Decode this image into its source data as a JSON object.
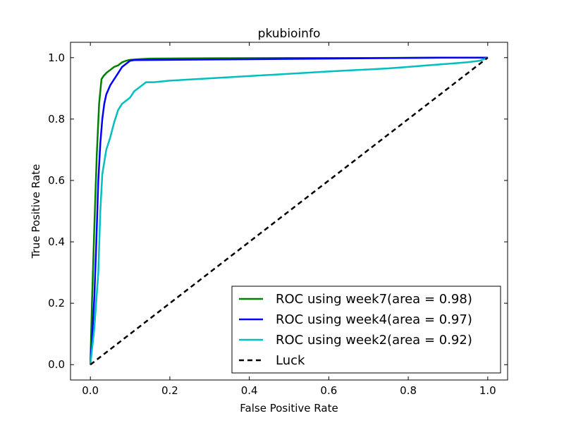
{
  "chart_data": {
    "type": "line",
    "title": "pkubioinfo",
    "xlabel": "False Positive Rate",
    "ylabel": "True Positive Rate",
    "xlim": [
      -0.05,
      1.05
    ],
    "ylim": [
      -0.05,
      1.05
    ],
    "xticks": [
      0.0,
      0.2,
      0.4,
      0.6,
      0.8,
      1.0
    ],
    "yticks": [
      0.0,
      0.2,
      0.4,
      0.6,
      0.8,
      1.0
    ],
    "xtick_labels": [
      "0.0",
      "0.2",
      "0.4",
      "0.6",
      "0.8",
      "1.0"
    ],
    "ytick_labels": [
      "0.0",
      "0.2",
      "0.4",
      "0.6",
      "0.8",
      "1.0"
    ],
    "grid": false,
    "legend_position": "bottom-right",
    "series": [
      {
        "name": "ROC using week7(area = 0.98)",
        "color": "#008000",
        "style": "solid",
        "x": [
          0.0,
          0.004,
          0.01,
          0.016,
          0.022,
          0.028,
          0.033,
          0.04,
          0.05,
          0.06,
          0.07,
          0.08,
          0.09,
          0.1,
          0.12,
          0.15,
          0.3,
          0.5,
          0.7,
          0.9,
          1.0
        ],
        "y": [
          0.0,
          0.2,
          0.45,
          0.68,
          0.85,
          0.93,
          0.94,
          0.95,
          0.96,
          0.97,
          0.975,
          0.985,
          0.99,
          0.993,
          0.995,
          0.997,
          0.998,
          0.999,
          0.999,
          1.0,
          1.0
        ]
      },
      {
        "name": "ROC using week4(area = 0.97)",
        "color": "#0000ff",
        "style": "solid",
        "x": [
          0.0,
          0.005,
          0.01,
          0.015,
          0.02,
          0.025,
          0.03,
          0.035,
          0.04,
          0.05,
          0.06,
          0.07,
          0.08,
          0.09,
          0.1,
          0.11,
          0.2,
          0.4,
          0.6,
          0.88,
          1.0
        ],
        "y": [
          0.0,
          0.1,
          0.22,
          0.4,
          0.6,
          0.72,
          0.8,
          0.85,
          0.88,
          0.91,
          0.93,
          0.95,
          0.97,
          0.98,
          0.99,
          0.992,
          0.993,
          0.995,
          0.997,
          1.0,
          1.0
        ]
      },
      {
        "name": "ROC using week2(area = 0.92)",
        "color": "#00bfbf",
        "style": "solid",
        "x": [
          0.0,
          0.01,
          0.02,
          0.025,
          0.03,
          0.04,
          0.05,
          0.06,
          0.07,
          0.08,
          0.09,
          0.1,
          0.11,
          0.12,
          0.13,
          0.14,
          0.16,
          0.2,
          0.4,
          0.6,
          0.75,
          0.8,
          0.85,
          0.9,
          0.95,
          0.98,
          1.0
        ],
        "y": [
          0.0,
          0.12,
          0.3,
          0.5,
          0.62,
          0.7,
          0.74,
          0.79,
          0.83,
          0.85,
          0.86,
          0.87,
          0.89,
          0.9,
          0.91,
          0.92,
          0.92,
          0.925,
          0.94,
          0.955,
          0.965,
          0.97,
          0.975,
          0.98,
          0.985,
          0.99,
          1.0
        ]
      },
      {
        "name": "Luck",
        "color": "#000000",
        "style": "dashed",
        "x": [
          0.0,
          1.0
        ],
        "y": [
          0.0,
          1.0
        ]
      }
    ]
  }
}
